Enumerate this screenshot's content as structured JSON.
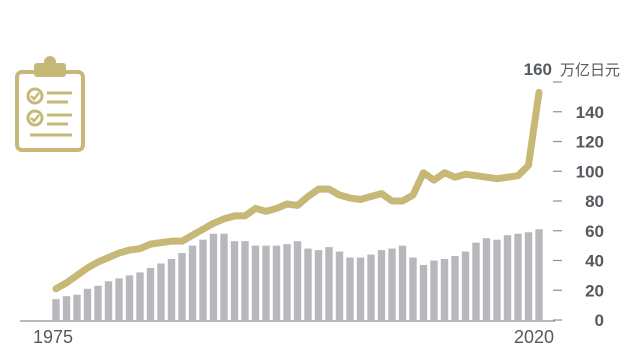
{
  "chart_data": {
    "type": "bar+line",
    "title": "",
    "x_start": 1975,
    "x_end": 2020,
    "x_tick_labels": [
      "1975",
      "2020"
    ],
    "y_unit": "万亿日元",
    "y_top_label": "160",
    "ylim": [
      0,
      160
    ],
    "y_ticks": [
      "0",
      "20",
      "40",
      "60",
      "80",
      "100",
      "120",
      "140"
    ],
    "grid": false,
    "bar_color": "#b7b8bc",
    "line_color": "#c6b877",
    "series": [
      {
        "type": "bar",
        "values": [
          14,
          16,
          17,
          21,
          23,
          26,
          28,
          30,
          32,
          35,
          38,
          41,
          45,
          50,
          54,
          58,
          58,
          53,
          53,
          50,
          50,
          50,
          51,
          53,
          48,
          47,
          49,
          46,
          42,
          42,
          44,
          47,
          48,
          50,
          42,
          37,
          40,
          41,
          43,
          46,
          52,
          55,
          54,
          57,
          58,
          59,
          61
        ]
      },
      {
        "type": "line",
        "values": [
          21,
          25,
          30,
          35,
          39,
          42,
          45,
          47,
          48,
          51,
          52,
          53,
          53,
          57,
          61,
          65,
          68,
          70,
          70,
          75,
          73,
          75,
          78,
          77,
          83,
          88,
          88,
          84,
          82,
          81,
          83,
          85,
          80,
          80,
          84,
          99,
          94,
          99,
          96,
          98,
          97,
          96,
          95,
          96,
          97,
          104,
          153
        ]
      }
    ]
  },
  "icon": {
    "name": "clipboard-checklist-icon",
    "color": "#c6b877"
  }
}
